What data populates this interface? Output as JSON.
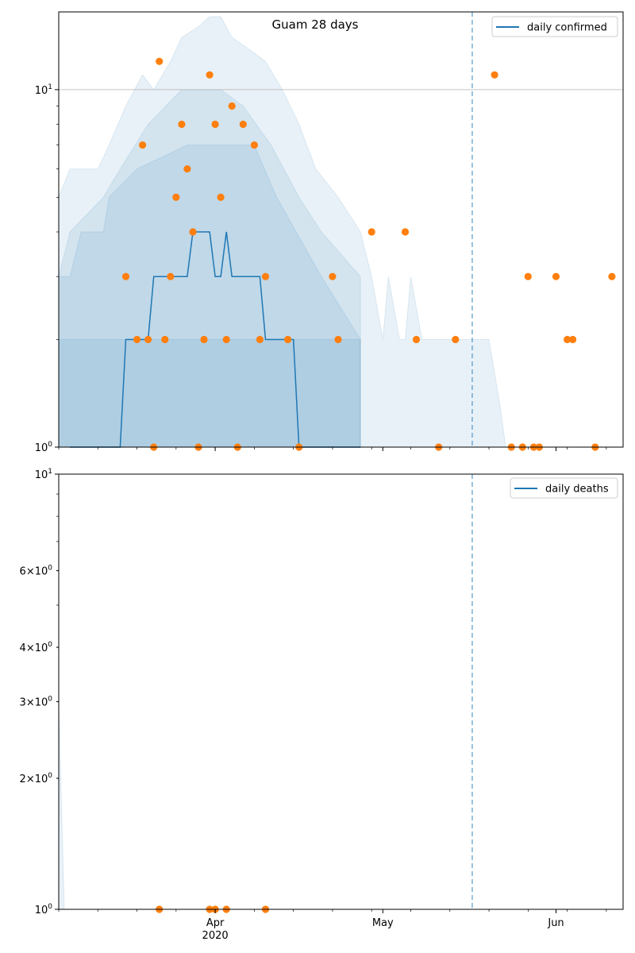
{
  "title": "Guam 28 days",
  "colors": {
    "line": "#1f77b4",
    "points": "#ff7f0e",
    "band": "#1f77b4",
    "vline": "#1f77b4",
    "grid": "#b0b0b0"
  },
  "x_axis": {
    "ticks": [
      {
        "date": "2020-04-01",
        "label": "Apr",
        "sub": "2020"
      },
      {
        "date": "2020-05-01",
        "label": "May",
        "sub": ""
      },
      {
        "date": "2020-06-01",
        "label": "Jun",
        "sub": ""
      }
    ],
    "range": [
      "2020-03-04",
      "2020-06-13"
    ]
  },
  "chart_data": [
    {
      "type": "line",
      "legend": "daily confirmed",
      "legend_position": "upper right",
      "yscale": "log",
      "ylim": [
        1,
        16.5
      ],
      "y_ticks": [
        {
          "value": 1,
          "label": "10^0"
        },
        {
          "value": 10,
          "label": "10^1"
        }
      ],
      "hline": 10,
      "vline_date": "2020-05-17",
      "median": [
        [
          "2020-03-06",
          1
        ],
        [
          "2020-03-15",
          1
        ],
        [
          "2020-03-16",
          2
        ],
        [
          "2020-03-20",
          2
        ],
        [
          "2020-03-21",
          3
        ],
        [
          "2020-03-27",
          3
        ],
        [
          "2020-03-28",
          4
        ],
        [
          "2020-03-31",
          4
        ],
        [
          "2020-04-01",
          3
        ],
        [
          "2020-04-02",
          3
        ],
        [
          "2020-04-03",
          4
        ],
        [
          "2020-04-04",
          3
        ],
        [
          "2020-04-09",
          3
        ],
        [
          "2020-04-10",
          2
        ],
        [
          "2020-04-15",
          2
        ],
        [
          "2020-04-16",
          1
        ],
        [
          "2020-04-27",
          1
        ]
      ],
      "bands": [
        {
          "upper": [
            [
              "2020-03-04",
              2
            ],
            [
              "2020-03-06",
              2
            ],
            [
              "2020-03-16",
              2
            ],
            [
              "2020-03-27",
              2
            ],
            [
              "2020-04-14",
              2
            ],
            [
              "2020-04-27",
              2
            ]
          ],
          "lower": [
            [
              "2020-03-04",
              1
            ],
            [
              "2020-04-27",
              1
            ]
          ]
        },
        {
          "upper": [
            [
              "2020-03-04",
              3
            ],
            [
              "2020-03-06",
              3
            ],
            [
              "2020-03-08",
              4
            ],
            [
              "2020-03-12",
              4
            ],
            [
              "2020-03-13",
              5
            ],
            [
              "2020-03-18",
              6
            ],
            [
              "2020-03-27",
              7
            ],
            [
              "2020-04-08",
              7
            ],
            [
              "2020-04-12",
              5
            ],
            [
              "2020-04-20",
              3
            ],
            [
              "2020-04-27",
              2
            ]
          ],
          "lower": [
            [
              "2020-03-04",
              1
            ],
            [
              "2020-04-27",
              1
            ]
          ]
        },
        {
          "upper": [
            [
              "2020-03-04",
              3
            ],
            [
              "2020-03-06",
              4
            ],
            [
              "2020-03-12",
              5
            ],
            [
              "2020-03-15",
              6
            ],
            [
              "2020-03-20",
              8
            ],
            [
              "2020-03-26",
              10
            ],
            [
              "2020-04-02",
              10
            ],
            [
              "2020-04-06",
              9
            ],
            [
              "2020-04-11",
              7
            ],
            [
              "2020-04-16",
              5
            ],
            [
              "2020-04-20",
              4
            ],
            [
              "2020-04-27",
              3
            ]
          ],
          "lower": [
            [
              "2020-03-04",
              1
            ],
            [
              "2020-04-27",
              1
            ]
          ]
        },
        {
          "upper": [
            [
              "2020-03-04",
              5
            ],
            [
              "2020-03-06",
              6
            ],
            [
              "2020-03-11",
              6
            ],
            [
              "2020-03-13",
              7
            ],
            [
              "2020-03-16",
              9
            ],
            [
              "2020-03-19",
              11
            ],
            [
              "2020-03-21",
              10
            ],
            [
              "2020-03-24",
              12
            ],
            [
              "2020-03-26",
              14
            ],
            [
              "2020-03-29",
              15
            ],
            [
              "2020-03-31",
              16
            ],
            [
              "2020-04-02",
              16
            ],
            [
              "2020-04-04",
              14
            ],
            [
              "2020-04-07",
              13
            ],
            [
              "2020-04-10",
              12
            ],
            [
              "2020-04-13",
              10
            ],
            [
              "2020-04-16",
              8
            ],
            [
              "2020-04-19",
              6
            ],
            [
              "2020-04-23",
              5
            ],
            [
              "2020-04-27",
              4
            ],
            [
              "2020-04-29",
              3
            ],
            [
              "2020-05-01",
              2
            ],
            [
              "2020-05-02",
              3
            ],
            [
              "2020-05-04",
              2
            ],
            [
              "2020-05-05",
              2
            ],
            [
              "2020-05-06",
              3
            ],
            [
              "2020-05-08",
              2
            ],
            [
              "2020-05-10",
              2
            ],
            [
              "2020-05-12",
              2
            ],
            [
              "2020-05-15",
              2
            ],
            [
              "2020-05-20",
              2
            ],
            [
              "2020-05-22",
              1.3
            ],
            [
              "2020-05-23",
              1
            ]
          ],
          "lower": [
            [
              "2020-03-04",
              1
            ],
            [
              "2020-05-23",
              1
            ]
          ]
        }
      ],
      "points": [
        [
          "2020-03-16",
          3
        ],
        [
          "2020-03-18",
          2
        ],
        [
          "2020-03-19",
          7
        ],
        [
          "2020-03-20",
          2
        ],
        [
          "2020-03-21",
          1
        ],
        [
          "2020-03-22",
          12
        ],
        [
          "2020-03-23",
          2
        ],
        [
          "2020-03-24",
          3
        ],
        [
          "2020-03-25",
          5
        ],
        [
          "2020-03-26",
          8
        ],
        [
          "2020-03-27",
          6
        ],
        [
          "2020-03-28",
          4
        ],
        [
          "2020-03-29",
          1
        ],
        [
          "2020-03-30",
          2
        ],
        [
          "2020-03-31",
          11
        ],
        [
          "2020-04-01",
          8
        ],
        [
          "2020-04-02",
          5
        ],
        [
          "2020-04-03",
          2
        ],
        [
          "2020-04-04",
          9
        ],
        [
          "2020-04-05",
          1
        ],
        [
          "2020-04-06",
          8
        ],
        [
          "2020-04-08",
          7
        ],
        [
          "2020-04-09",
          2
        ],
        [
          "2020-04-10",
          3
        ],
        [
          "2020-04-14",
          2
        ],
        [
          "2020-04-16",
          1
        ],
        [
          "2020-04-22",
          3
        ],
        [
          "2020-04-23",
          2
        ],
        [
          "2020-04-29",
          4
        ],
        [
          "2020-05-05",
          4
        ],
        [
          "2020-05-07",
          2
        ],
        [
          "2020-05-11",
          1
        ],
        [
          "2020-05-14",
          2
        ],
        [
          "2020-05-21",
          11
        ],
        [
          "2020-05-24",
          1
        ],
        [
          "2020-05-26",
          1
        ],
        [
          "2020-05-27",
          3
        ],
        [
          "2020-05-28",
          1
        ],
        [
          "2020-05-29",
          1
        ],
        [
          "2020-06-01",
          3
        ],
        [
          "2020-06-03",
          2
        ],
        [
          "2020-06-04",
          2
        ],
        [
          "2020-06-08",
          1
        ],
        [
          "2020-06-11",
          3
        ]
      ]
    },
    {
      "type": "line",
      "legend": "daily deaths",
      "legend_position": "upper right",
      "yscale": "log",
      "ylim": [
        1,
        10
      ],
      "y_ticks": [
        {
          "value": 1,
          "label": "10^0"
        },
        {
          "value": 2,
          "label": "2×10^0"
        },
        {
          "value": 3,
          "label": "3×10^0"
        },
        {
          "value": 4,
          "label": "4×10^0"
        },
        {
          "value": 6,
          "label": "6×10^0"
        },
        {
          "value": 10,
          "label": "10^1"
        }
      ],
      "vline_date": "2020-05-17",
      "median": [],
      "bands": [
        {
          "upper": [
            [
              "2020-03-04",
              3
            ],
            [
              "2020-03-05",
              1
            ]
          ],
          "lower": [
            [
              "2020-03-04",
              1
            ],
            [
              "2020-03-05",
              1
            ]
          ]
        }
      ],
      "points": [
        [
          "2020-03-22",
          1
        ],
        [
          "2020-03-31",
          1
        ],
        [
          "2020-04-01",
          1
        ],
        [
          "2020-04-03",
          1
        ],
        [
          "2020-04-10",
          1
        ]
      ]
    }
  ]
}
